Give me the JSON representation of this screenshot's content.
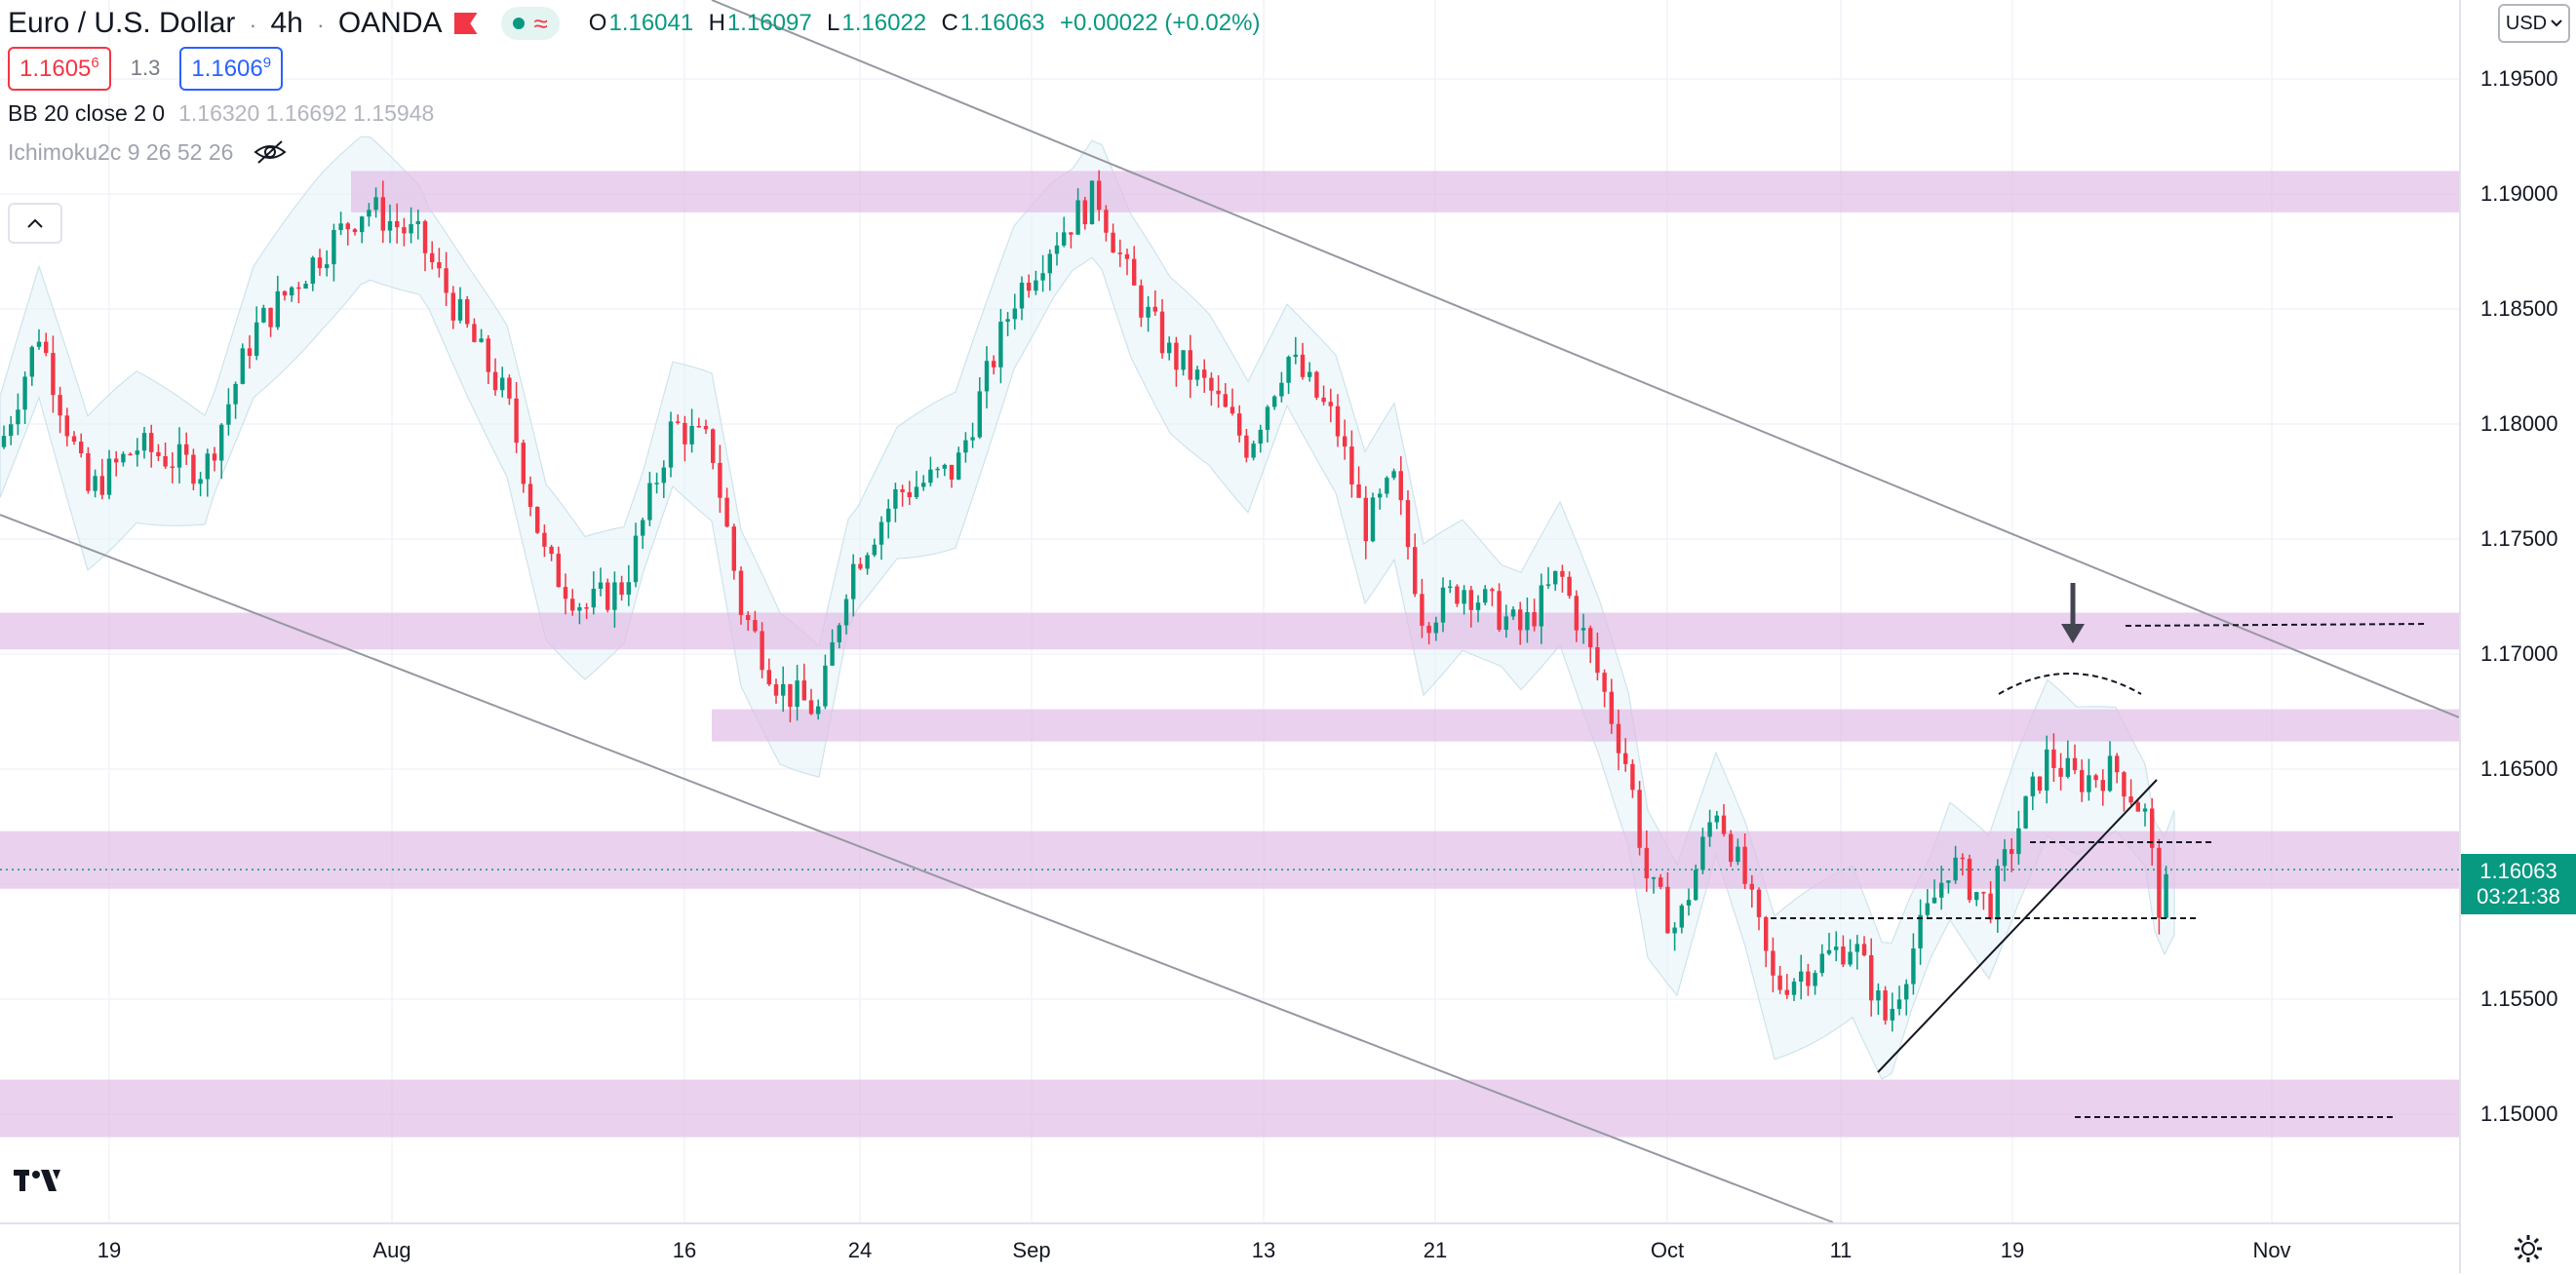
{
  "header": {
    "symbol": "Euro / U.S. Dollar",
    "separator": "·",
    "interval": "4h",
    "exchange": "OANDA",
    "ohlc": {
      "o_label": "O",
      "o_value": "1.16041",
      "h_label": "H",
      "h_value": "1.16097",
      "l_label": "L",
      "l_value": "1.16022",
      "c_label": "C",
      "c_value": "1.16063",
      "change": "+0.00022 (+0.02%)"
    }
  },
  "trade": {
    "sell_main": "1.1605",
    "sell_sup": "6",
    "spread": "1.3",
    "buy_main": "1.1606",
    "buy_sup": "9"
  },
  "indicators": {
    "bb_name": "BB 20 close 2 0",
    "bb_values": "1.16320  1.16692  1.15948",
    "ichimoku_name": "Ichimoku2c 9 26 52 26"
  },
  "currency": "USD",
  "price_axis": {
    "ticks": [
      "1.19500",
      "1.19000",
      "1.18500",
      "1.18000",
      "1.17500",
      "1.17000",
      "1.16500",
      "1.16000",
      "1.15500",
      "1.15000"
    ],
    "current_price": "1.16063",
    "countdown": "03:21:38"
  },
  "time_axis": {
    "ticks": [
      "19",
      "Aug",
      "16",
      "24",
      "Sep",
      "13",
      "21",
      "Oct",
      "11",
      "19",
      "Nov"
    ]
  },
  "colors": {
    "bull": "#089981",
    "bear": "#f23645",
    "zone": "#e1bee7",
    "bb_fill": "#e3f2f8"
  },
  "icons": {
    "collapse": "chevron-up-icon",
    "hide": "eye-off-icon",
    "logo": "tradingview-logo",
    "settings": "gear-icon"
  }
}
